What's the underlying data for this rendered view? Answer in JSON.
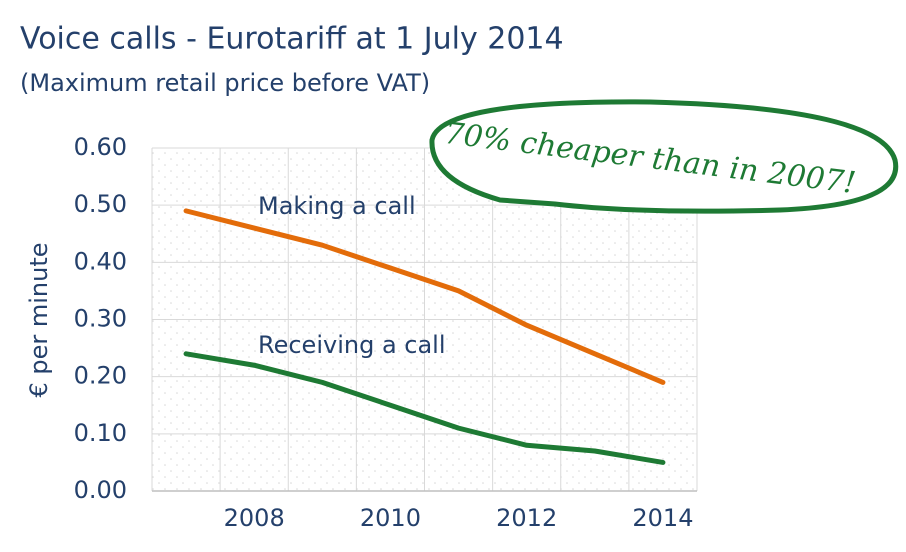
{
  "chart_data": {
    "type": "line",
    "title": "Voice calls - Eurotariff at 1 July 2014",
    "subtitle": "(Maximum retail price before VAT)",
    "y_label": "€ per minute",
    "annotation": "70% cheaper than in 2007!",
    "x": [
      2007,
      2008,
      2009,
      2010,
      2011,
      2012,
      2013,
      2014
    ],
    "xlim": [
      2006.5,
      2014.5
    ],
    "xticks": [
      2008,
      2010,
      2012,
      2014
    ],
    "ylim": [
      0,
      0.6
    ],
    "yticks": [
      {
        "value": 0,
        "label": "0.00"
      },
      {
        "value": 0.1,
        "label": "0.10"
      },
      {
        "value": 0.2,
        "label": "0.20"
      },
      {
        "value": 0.3,
        "label": "0.30"
      },
      {
        "value": 0.4,
        "label": "0.40"
      },
      {
        "value": 0.5,
        "label": "0.50"
      },
      {
        "value": 0.6,
        "label": "0.60"
      }
    ],
    "grid": true,
    "series": [
      {
        "name": "Making a call",
        "color": "#e36c0a",
        "values": [
          0.49,
          0.46,
          0.43,
          0.39,
          0.35,
          0.29,
          0.24,
          0.19
        ]
      },
      {
        "name": "Receiving a call",
        "color": "#1e7a34",
        "values": [
          0.24,
          0.22,
          0.19,
          0.15,
          0.11,
          0.08,
          0.07,
          0.05
        ]
      }
    ]
  }
}
